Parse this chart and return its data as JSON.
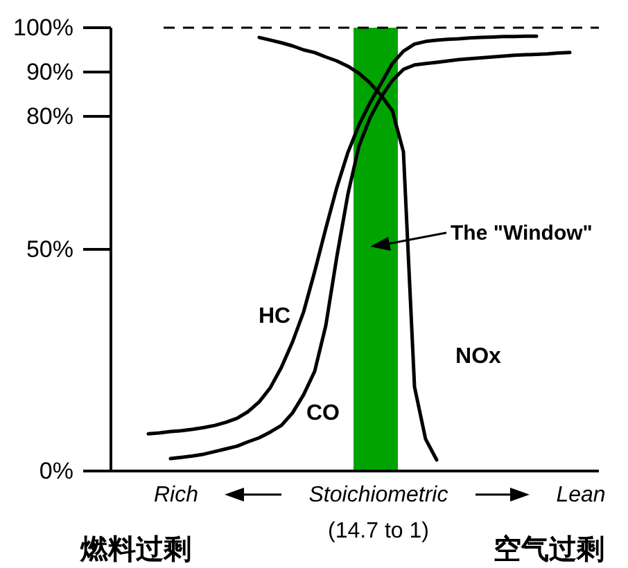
{
  "chart_data": {
    "type": "line",
    "categories": [
      null,
      null,
      null,
      null,
      null,
      null,
      null,
      null,
      null,
      null,
      null,
      null,
      null,
      null,
      null,
      null,
      null,
      null,
      null,
      null,
      null,
      null,
      null,
      null,
      null,
      null,
      null,
      null,
      null,
      null,
      null,
      null,
      null,
      null,
      null,
      null,
      null,
      null,
      null,
      null,
      null,
      null,
      null
    ],
    "series": [
      {
        "name": "HC",
        "color": "#000000",
        "values": [
          null,
          null,
          8.4,
          8.6,
          8.9,
          9.1,
          9.4,
          9.8,
          10.3,
          11,
          11.9,
          13.4,
          15.6,
          18.8,
          23.4,
          29.1,
          35.9,
          45,
          54.7,
          64,
          71.9,
          78.1,
          83.1,
          87.5,
          91.9,
          94.7,
          96.3,
          96.9,
          97.2,
          97.4,
          97.5,
          97.7,
          97.8,
          97.9,
          98,
          98,
          98.1,
          98.1,
          null,
          null,
          null,
          null,
          null
        ]
      },
      {
        "name": "CO",
        "color": "#000000",
        "values": [
          null,
          null,
          null,
          null,
          2.8,
          3.1,
          3.4,
          3.8,
          4.4,
          5,
          5.6,
          6.6,
          7.5,
          8.8,
          10.3,
          13.1,
          17.2,
          22.5,
          32.8,
          48.4,
          62.5,
          73.4,
          79.7,
          84.4,
          88.1,
          90.6,
          91.6,
          91.9,
          92.2,
          92.5,
          92.8,
          93,
          93.2,
          93.4,
          93.6,
          93.8,
          93.9,
          94,
          94.1,
          94.3,
          94.4,
          null,
          null
        ]
      },
      {
        "name": "NOx",
        "color": "#000000",
        "values": [
          null,
          null,
          null,
          null,
          null,
          null,
          null,
          null,
          null,
          null,
          null,
          null,
          97.8,
          97.2,
          96.6,
          95.9,
          95,
          94.4,
          93.4,
          92.5,
          91.3,
          89.7,
          87.5,
          84.7,
          81.3,
          72,
          19,
          7.2,
          2.5,
          null,
          null,
          null,
          null,
          null,
          null,
          null,
          null,
          null,
          null,
          null,
          null,
          null,
          null
        ]
      }
    ],
    "ylim": [
      0,
      100
    ],
    "yticks": [
      {
        "value": 0,
        "label": "0%"
      },
      {
        "value": 50,
        "label": "50%"
      },
      {
        "value": 80,
        "label": "80%"
      },
      {
        "value": 90,
        "label": "90%"
      },
      {
        "value": 100,
        "label": "100%"
      }
    ],
    "ref_lines": [
      {
        "axis": "y",
        "value": 100,
        "line_style": "dashed",
        "color": "#000000"
      }
    ],
    "xlabel": "Stoichiometric",
    "annotations": [
      "The \"Window\"",
      "Rich",
      "Lean",
      "(14.7 to 1)",
      "燃料过剩",
      "空气过剩"
    ],
    "legend": false,
    "grid": false,
    "marker": "none",
    "line_style": "solid"
  }
}
